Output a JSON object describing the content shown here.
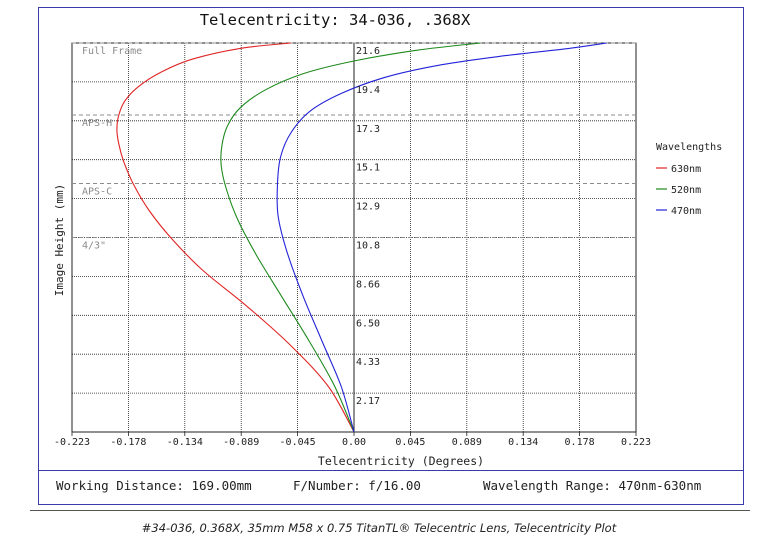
{
  "chart_data": {
    "type": "line",
    "title": "Telecentricity: 34-036, .368X",
    "xlabel": "Telecentricity (Degrees)",
    "ylabel": "Image Height (mm)",
    "xlim": [
      -0.223,
      0.223
    ],
    "ylim": [
      0,
      21.6
    ],
    "x_ticks": [
      "-0.223",
      "-0.178",
      "-0.134",
      "-0.089",
      "-0.045",
      "0.00",
      "0.045",
      "0.089",
      "0.134",
      "0.178",
      "0.223"
    ],
    "y_ticks": [
      "2.17",
      "4.33",
      "6.50",
      "8.66",
      "10.8",
      "12.9",
      "15.1",
      "17.3",
      "19.4",
      "21.6"
    ],
    "grid": true,
    "legend": {
      "title": "Wavelengths",
      "placement": "right"
    },
    "sensor_markers": [
      {
        "label": "Full Frame",
        "y": 21.6
      },
      {
        "label": "APS-H",
        "y": 17.6
      },
      {
        "label": "APS-C",
        "y": 13.8
      },
      {
        "label": "4/3\"",
        "y": 10.8
      }
    ],
    "series": [
      {
        "name": "630nm",
        "color": "#e02424",
        "x": [
          0,
          -0.02,
          -0.05,
          -0.085,
          -0.12,
          -0.145,
          -0.162,
          -0.174,
          -0.182,
          -0.186,
          -0.1875,
          -0.186,
          -0.181,
          -0.17,
          -0.152,
          -0.128,
          -0.09,
          -0.05
        ],
        "y": [
          0,
          2.5,
          4.8,
          7.0,
          9.0,
          10.8,
          12.3,
          13.7,
          15.0,
          16.0,
          16.8,
          17.6,
          18.4,
          19.2,
          20.0,
          20.7,
          21.3,
          21.6
        ]
      },
      {
        "name": "520nm",
        "color": "#1e8a1e",
        "x": [
          0,
          -0.015,
          -0.035,
          -0.057,
          -0.077,
          -0.092,
          -0.101,
          -0.105,
          -0.1045,
          -0.1,
          -0.09,
          -0.07,
          -0.04,
          0,
          0.05,
          0.1
        ],
        "y": [
          0,
          2.5,
          5.0,
          7.5,
          9.8,
          11.8,
          13.5,
          14.8,
          15.9,
          17.0,
          18.0,
          19.0,
          19.9,
          20.6,
          21.2,
          21.6
        ]
      },
      {
        "name": "470nm",
        "color": "#2323d8",
        "x": [
          0,
          -0.01,
          -0.025,
          -0.04,
          -0.053,
          -0.06,
          -0.0605,
          -0.058,
          -0.05,
          -0.035,
          -0.01,
          0.025,
          0.07,
          0.12,
          0.17,
          0.2
        ],
        "y": [
          0,
          2.5,
          5.0,
          7.5,
          10.0,
          12.0,
          13.8,
          15.3,
          16.6,
          17.8,
          18.8,
          19.7,
          20.4,
          20.9,
          21.3,
          21.6
        ]
      }
    ]
  },
  "footer": {
    "working_distance": "Working Distance: 169.00mm",
    "f_number": "F/Number: f/16.00",
    "wavelength_range": "Wavelength Range: 470nm-630nm"
  },
  "caption": "#34-036, 0.368X, 35mm M58 x 0.75 TitanTL® Telecentric Lens, Telecentricity Plot"
}
